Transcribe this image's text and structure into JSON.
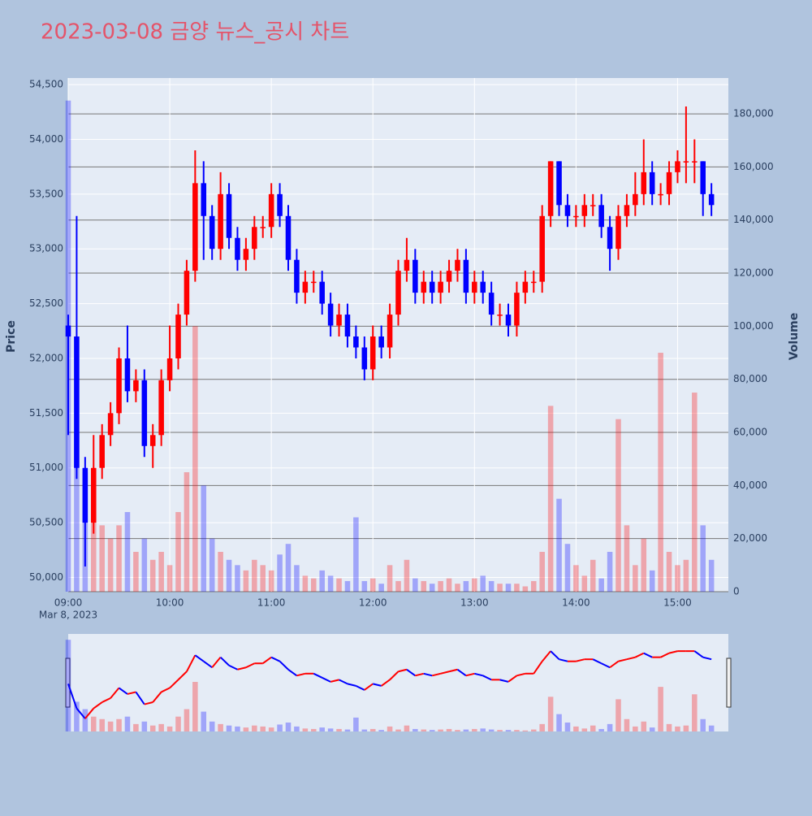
{
  "chart_data": {
    "type": "candlestick",
    "title": "2023-03-08 금양 뉴스_공시 차트",
    "x_axis_date": "Mar 8, 2023",
    "y_axis_title": "Price",
    "y2_axis_title": "Volume",
    "up_color": "#ff0000",
    "down_color": "#0000ff",
    "xlim": [
      "09:00",
      "15:30"
    ],
    "xticks": [
      "09:00",
      "10:00",
      "11:00",
      "12:00",
      "13:00",
      "14:00",
      "15:00"
    ],
    "ylim": [
      49870,
      54560
    ],
    "yticks": [
      {
        "value": 50000,
        "label": "50,000"
      },
      {
        "value": 50500,
        "label": "50,500"
      },
      {
        "value": 51000,
        "label": "51,000"
      },
      {
        "value": 51500,
        "label": "51,500"
      },
      {
        "value": 52000,
        "label": "52,000"
      },
      {
        "value": 52500,
        "label": "52,500"
      },
      {
        "value": 53000,
        "label": "53,000"
      },
      {
        "value": 53500,
        "label": "53,500"
      },
      {
        "value": 54000,
        "label": "54,000"
      },
      {
        "value": 54500,
        "label": "54,500"
      }
    ],
    "y2lim": [
      0,
      193500
    ],
    "y2ticks": [
      0,
      {
        "value": 20000,
        "label": "20,000"
      },
      {
        "value": 40000,
        "label": "40,000"
      },
      {
        "value": 60000,
        "label": "60,000"
      },
      {
        "value": 80000,
        "label": "80,000"
      },
      {
        "value": 100000,
        "label": "100,000"
      },
      {
        "value": 120000,
        "label": "120,000"
      },
      {
        "value": 140000,
        "label": "140,000"
      },
      {
        "value": 160000,
        "label": "160,000"
      },
      {
        "value": 180000,
        "label": "180,000"
      }
    ],
    "grid": true,
    "x": [
      "09:00",
      "09:05",
      "09:10",
      "09:15",
      "09:20",
      "09:25",
      "09:30",
      "09:35",
      "09:40",
      "09:45",
      "09:50",
      "09:55",
      "10:00",
      "10:05",
      "10:10",
      "10:15",
      "10:20",
      "10:25",
      "10:30",
      "10:35",
      "10:40",
      "10:45",
      "10:50",
      "10:55",
      "11:00",
      "11:05",
      "11:10",
      "11:15",
      "11:20",
      "11:25",
      "11:30",
      "11:35",
      "11:40",
      "11:45",
      "11:50",
      "11:55",
      "12:00",
      "12:05",
      "12:10",
      "12:15",
      "12:20",
      "12:25",
      "12:30",
      "12:35",
      "12:40",
      "12:45",
      "12:50",
      "12:55",
      "13:00",
      "13:05",
      "13:10",
      "13:15",
      "13:20",
      "13:25",
      "13:30",
      "13:35",
      "13:40",
      "13:45",
      "13:50",
      "13:55",
      "14:00",
      "14:05",
      "14:10",
      "14:15",
      "14:20",
      "14:25",
      "14:30",
      "14:35",
      "14:40",
      "14:45",
      "14:50",
      "14:55",
      "15:00",
      "15:05",
      "15:10",
      "15:15",
      "15:20"
    ],
    "open": [
      52300,
      52200,
      51000,
      50500,
      51000,
      51300,
      51500,
      52000,
      51700,
      51800,
      51200,
      51300,
      51800,
      52000,
      52400,
      52800,
      53600,
      53300,
      53000,
      53500,
      53100,
      52900,
      53000,
      53200,
      53200,
      53500,
      53300,
      52900,
      52600,
      52700,
      52700,
      52500,
      52300,
      52400,
      52200,
      52100,
      51900,
      52200,
      52100,
      52400,
      52800,
      52900,
      52600,
      52700,
      52600,
      52700,
      52800,
      52900,
      52600,
      52700,
      52600,
      52400,
      52400,
      52300,
      52600,
      52700,
      52700,
      53300,
      53800,
      53400,
      53300,
      53300,
      53400,
      53400,
      53200,
      53000,
      53300,
      53400,
      53500,
      53700,
      53500,
      53500,
      53700,
      53800,
      53800,
      53800,
      53500
    ],
    "high": [
      52400,
      53300,
      51100,
      51300,
      51400,
      51600,
      52100,
      52300,
      51900,
      51900,
      51400,
      51900,
      52300,
      52500,
      52900,
      53900,
      53800,
      53400,
      53700,
      53600,
      53200,
      53100,
      53300,
      53300,
      53600,
      53600,
      53400,
      53000,
      52800,
      52800,
      52800,
      52600,
      52500,
      52500,
      52300,
      52200,
      52300,
      52300,
      52500,
      52900,
      53100,
      53000,
      52800,
      52800,
      52800,
      52900,
      53000,
      53000,
      52800,
      52800,
      52700,
      52500,
      52500,
      52700,
      52800,
      52800,
      53400,
      53800,
      53800,
      53500,
      53400,
      53500,
      53500,
      53500,
      53300,
      53400,
      53500,
      53700,
      54000,
      53800,
      53600,
      53800,
      53900,
      54300,
      54000,
      53800,
      53600
    ],
    "low": [
      51300,
      50900,
      50100,
      50400,
      50900,
      51200,
      51400,
      51600,
      51600,
      51100,
      51000,
      51200,
      51700,
      51900,
      52300,
      52700,
      52900,
      52900,
      52900,
      53000,
      52800,
      52800,
      52900,
      53100,
      53100,
      53200,
      52800,
      52500,
      52500,
      52600,
      52400,
      52200,
      52200,
      52100,
      52000,
      51800,
      51800,
      52000,
      52000,
      52300,
      52700,
      52500,
      52500,
      52500,
      52500,
      52600,
      52700,
      52500,
      52500,
      52500,
      52300,
      52300,
      52200,
      52200,
      52500,
      52600,
      52600,
      53200,
      53300,
      53200,
      53200,
      53200,
      53300,
      53100,
      52800,
      52900,
      53200,
      53300,
      53400,
      53400,
      53400,
      53400,
      53600,
      53600,
      53600,
      53300,
      53300
    ],
    "close": [
      52200,
      51000,
      50500,
      51000,
      51300,
      51500,
      52000,
      51700,
      51800,
      51200,
      51300,
      51800,
      52000,
      52400,
      52800,
      53600,
      53300,
      53000,
      53500,
      53100,
      52900,
      53000,
      53200,
      53200,
      53500,
      53300,
      52900,
      52600,
      52700,
      52700,
      52500,
      52300,
      52400,
      52200,
      52100,
      51900,
      52200,
      52100,
      52400,
      52800,
      52900,
      52600,
      52700,
      52600,
      52700,
      52800,
      52900,
      52600,
      52700,
      52600,
      52400,
      52400,
      52300,
      52600,
      52700,
      52700,
      53300,
      53800,
      53400,
      53300,
      53300,
      53400,
      53400,
      53200,
      53000,
      53300,
      53400,
      53500,
      53700,
      53500,
      53500,
      53700,
      53800,
      53800,
      53800,
      53500,
      53400
    ],
    "volume": [
      185000,
      60000,
      45000,
      30000,
      25000,
      20000,
      25000,
      30000,
      15000,
      20000,
      12000,
      15000,
      10000,
      30000,
      45000,
      100000,
      40000,
      20000,
      15000,
      12000,
      10000,
      8000,
      12000,
      10000,
      8000,
      14000,
      18000,
      10000,
      6000,
      5000,
      8000,
      6000,
      5000,
      4000,
      28000,
      4000,
      5000,
      3000,
      10000,
      4000,
      12000,
      5000,
      4000,
      3000,
      4000,
      5000,
      3000,
      4000,
      5000,
      6000,
      4000,
      3000,
      3000,
      3000,
      2000,
      4000,
      15000,
      70000,
      35000,
      18000,
      10000,
      6000,
      12000,
      5000,
      15000,
      65000,
      25000,
      10000,
      20000,
      8000,
      90000,
      15000,
      10000,
      12000,
      75000,
      25000,
      12000
    ]
  }
}
